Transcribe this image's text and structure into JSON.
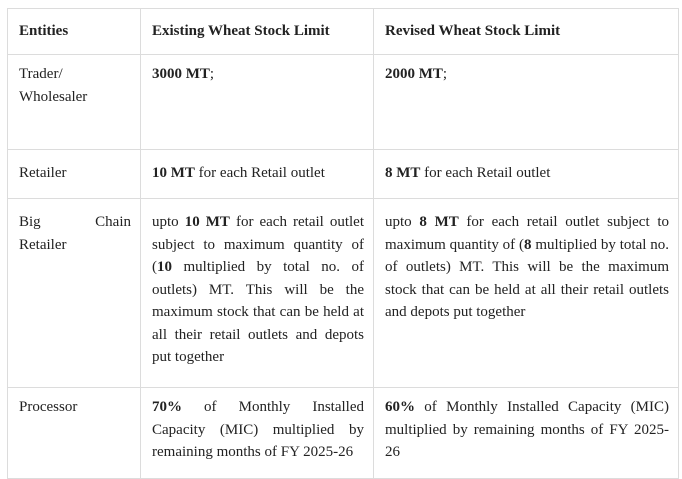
{
  "table": {
    "headers": {
      "entities": "Entities",
      "existing": "Existing Wheat Stock Limit",
      "revised": "Revised Wheat Stock Limit"
    },
    "rows": [
      {
        "entity": "Trader/ Wholesaler",
        "existing": {
          "bold": "3000 MT",
          "rest": ";"
        },
        "revised": {
          "bold": "2000 MT",
          "rest": ";"
        }
      },
      {
        "entity": "Retailer",
        "existing": {
          "bold": "10 MT",
          "rest": " for each Retail outlet"
        },
        "revised": {
          "bold": "8 MT",
          "rest": " for each Retail outlet"
        }
      },
      {
        "entity_part1": "Big",
        "entity_part2": "Chain",
        "entity_part3": "Retailer",
        "existing": {
          "pre": "upto ",
          "bold1": "10 MT",
          "mid": " for each retail outlet subject to maximum quantity of (",
          "bold2": "10",
          "rest": " multiplied by total no. of outlets) MT. This will be the maximum stock that can be held at all their retail outlets and depots put together"
        },
        "revised": {
          "pre": "upto ",
          "bold1": "8 MT",
          "mid": " for each retail outlet subject to maximum quantity of (",
          "bold2": "8",
          "rest": " multiplied by total no. of outlets) MT. This will be the maximum stock that can be held at all their retail outlets and depots put together"
        }
      },
      {
        "entity": "Processor",
        "existing": {
          "bold": "70%",
          "rest": " of Monthly Installed Capacity (MIC) multiplied by remaining months of FY 2025-26"
        },
        "revised": {
          "bold": "60%",
          "rest": " of Monthly Installed Capacity (MIC) multiplied by remaining months of FY 2025-26"
        }
      }
    ]
  }
}
